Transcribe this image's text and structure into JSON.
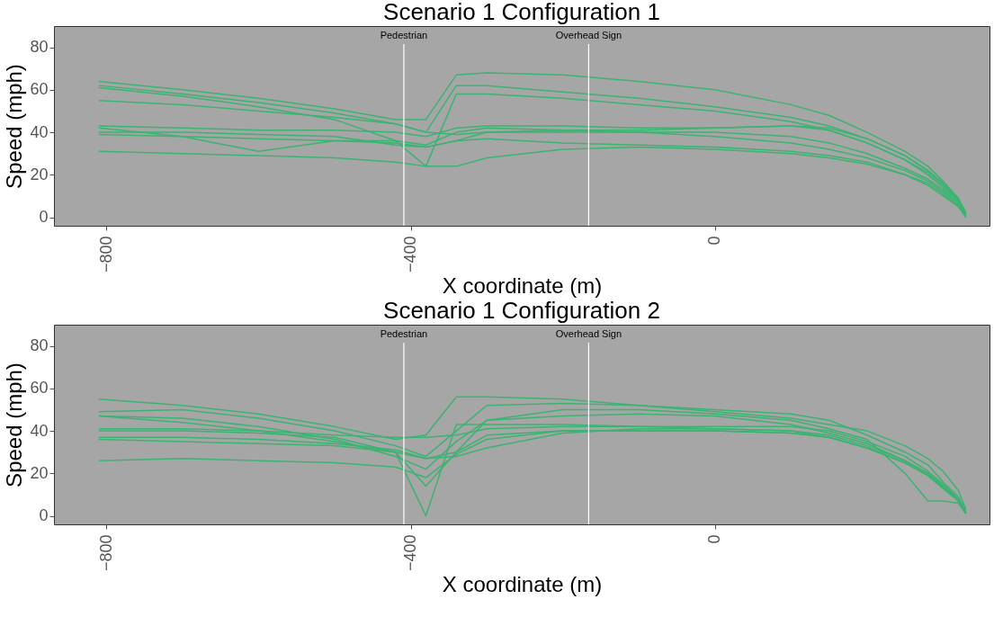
{
  "chart_data": [
    {
      "type": "line",
      "title": "Scenario  1  Configuration 1",
      "xlabel": "X coordinate (m)",
      "ylabel": "Speed (mph)",
      "x": [
        -810,
        -700,
        -600,
        -500,
        -420,
        -380,
        -340,
        -300,
        -200,
        -100,
        0,
        100,
        150,
        200,
        250,
        280,
        300,
        320,
        330
      ],
      "series": [
        {
          "color": "#3cb371",
          "values": [
            64,
            60,
            56,
            51,
            46,
            46,
            67,
            68,
            67,
            64,
            60,
            53,
            48,
            40,
            31,
            24,
            17,
            9,
            2
          ]
        },
        {
          "color": "#3cb371",
          "values": [
            62,
            58,
            54,
            49,
            44,
            40,
            62,
            62,
            59,
            56,
            52,
            47,
            43,
            37,
            29,
            22,
            16,
            8,
            2
          ]
        },
        {
          "color": "#3cb371",
          "values": [
            61,
            57,
            52,
            46,
            36,
            24,
            58,
            58,
            56,
            53,
            50,
            45,
            41,
            35,
            27,
            20,
            14,
            7,
            1
          ]
        },
        {
          "color": "#3cb371",
          "values": [
            55,
            53,
            50,
            47,
            44,
            40,
            39,
            40,
            41,
            40,
            38,
            35,
            32,
            28,
            22,
            17,
            12,
            6,
            1
          ]
        },
        {
          "color": "#3cb371",
          "values": [
            43,
            42,
            41,
            41,
            40,
            38,
            42,
            43,
            43,
            42,
            42,
            43,
            42,
            37,
            29,
            22,
            16,
            8,
            2
          ]
        },
        {
          "color": "#3cb371",
          "values": [
            42,
            38,
            31,
            36,
            36,
            34,
            40,
            42,
            41,
            41,
            42,
            43,
            41,
            35,
            27,
            21,
            15,
            8,
            2
          ]
        },
        {
          "color": "#3cb371",
          "values": [
            40,
            40,
            39,
            38,
            34,
            33,
            36,
            40,
            40,
            40,
            40,
            38,
            35,
            30,
            23,
            18,
            13,
            6,
            0
          ]
        },
        {
          "color": "#3cb371",
          "values": [
            39,
            38,
            37,
            36,
            35,
            33,
            36,
            37,
            35,
            34,
            33,
            31,
            29,
            26,
            20,
            15,
            10,
            5,
            0
          ]
        },
        {
          "color": "#3cb371",
          "values": [
            31,
            30,
            29,
            28,
            26,
            24,
            24,
            28,
            32,
            33,
            32,
            30,
            28,
            25,
            20,
            16,
            11,
            5,
            1
          ]
        }
      ],
      "xlim": [
        -869,
        361
      ],
      "ylim": [
        -4,
        90
      ],
      "xticks": [
        -800,
        -400,
        0
      ],
      "yticks": [
        0,
        20,
        40,
        60,
        80
      ],
      "grid": false,
      "ref_lines": [
        {
          "axis": "x",
          "value": -409,
          "label": "Pedestrian",
          "color": "#ffffff"
        },
        {
          "axis": "x",
          "value": -166,
          "label": "Overhead Sign",
          "color": "#ffffff"
        }
      ]
    },
    {
      "type": "line",
      "title": "Scenario  1  Configuration 2",
      "xlabel": "X coordinate (m)",
      "ylabel": "Speed (mph)",
      "x": [
        -810,
        -700,
        -600,
        -500,
        -420,
        -380,
        -340,
        -300,
        -200,
        -100,
        0,
        100,
        150,
        200,
        250,
        280,
        300,
        320,
        330
      ],
      "series": [
        {
          "color": "#3cb371",
          "values": [
            55,
            52,
            48,
            42,
            36,
            38,
            56,
            56,
            55,
            52,
            50,
            48,
            45,
            38,
            30,
            24,
            16,
            9,
            2
          ]
        },
        {
          "color": "#3cb371",
          "values": [
            49,
            50,
            46,
            40,
            33,
            28,
            40,
            52,
            53,
            52,
            49,
            46,
            43,
            40,
            33,
            27,
            21,
            12,
            3
          ]
        },
        {
          "color": "#3cb371",
          "values": [
            47,
            46,
            42,
            36,
            28,
            22,
            35,
            45,
            47,
            48,
            47,
            43,
            39,
            34,
            26,
            20,
            14,
            8,
            1
          ]
        },
        {
          "color": "#3cb371",
          "values": [
            47,
            44,
            40,
            35,
            30,
            14,
            30,
            45,
            50,
            50,
            48,
            45,
            41,
            36,
            20,
            7,
            7,
            6,
            1
          ]
        },
        {
          "color": "#3cb371",
          "values": [
            41,
            41,
            40,
            38,
            37,
            37,
            38,
            41,
            42,
            42,
            42,
            42,
            40,
            35,
            28,
            21,
            15,
            8,
            1
          ]
        },
        {
          "color": "#3cb371",
          "values": [
            40,
            40,
            39,
            37,
            30,
            0,
            43,
            43,
            43,
            42,
            41,
            40,
            38,
            33,
            26,
            20,
            14,
            7,
            1
          ]
        },
        {
          "color": "#3cb371",
          "values": [
            37,
            37,
            36,
            34,
            31,
            27,
            30,
            38,
            40,
            40,
            40,
            39,
            37,
            32,
            25,
            19,
            13,
            7,
            1
          ]
        },
        {
          "color": "#3cb371",
          "values": [
            36,
            35,
            34,
            33,
            30,
            27,
            28,
            32,
            39,
            41,
            41,
            40,
            37,
            32,
            25,
            19,
            13,
            7,
            1
          ]
        },
        {
          "color": "#3cb371",
          "values": [
            26,
            27,
            26,
            25,
            23,
            18,
            29,
            36,
            40,
            40,
            40,
            39,
            37,
            32,
            25,
            19,
            13,
            7,
            1
          ]
        }
      ],
      "xlim": [
        -869,
        361
      ],
      "ylim": [
        -4,
        90
      ],
      "xticks": [
        -800,
        -400,
        0
      ],
      "yticks": [
        0,
        20,
        40,
        60,
        80
      ],
      "grid": false,
      "ref_lines": [
        {
          "axis": "x",
          "value": -409,
          "label": "Pedestrian",
          "color": "#ffffff"
        },
        {
          "axis": "x",
          "value": -166,
          "label": "Overhead Sign",
          "color": "#ffffff"
        }
      ]
    }
  ]
}
